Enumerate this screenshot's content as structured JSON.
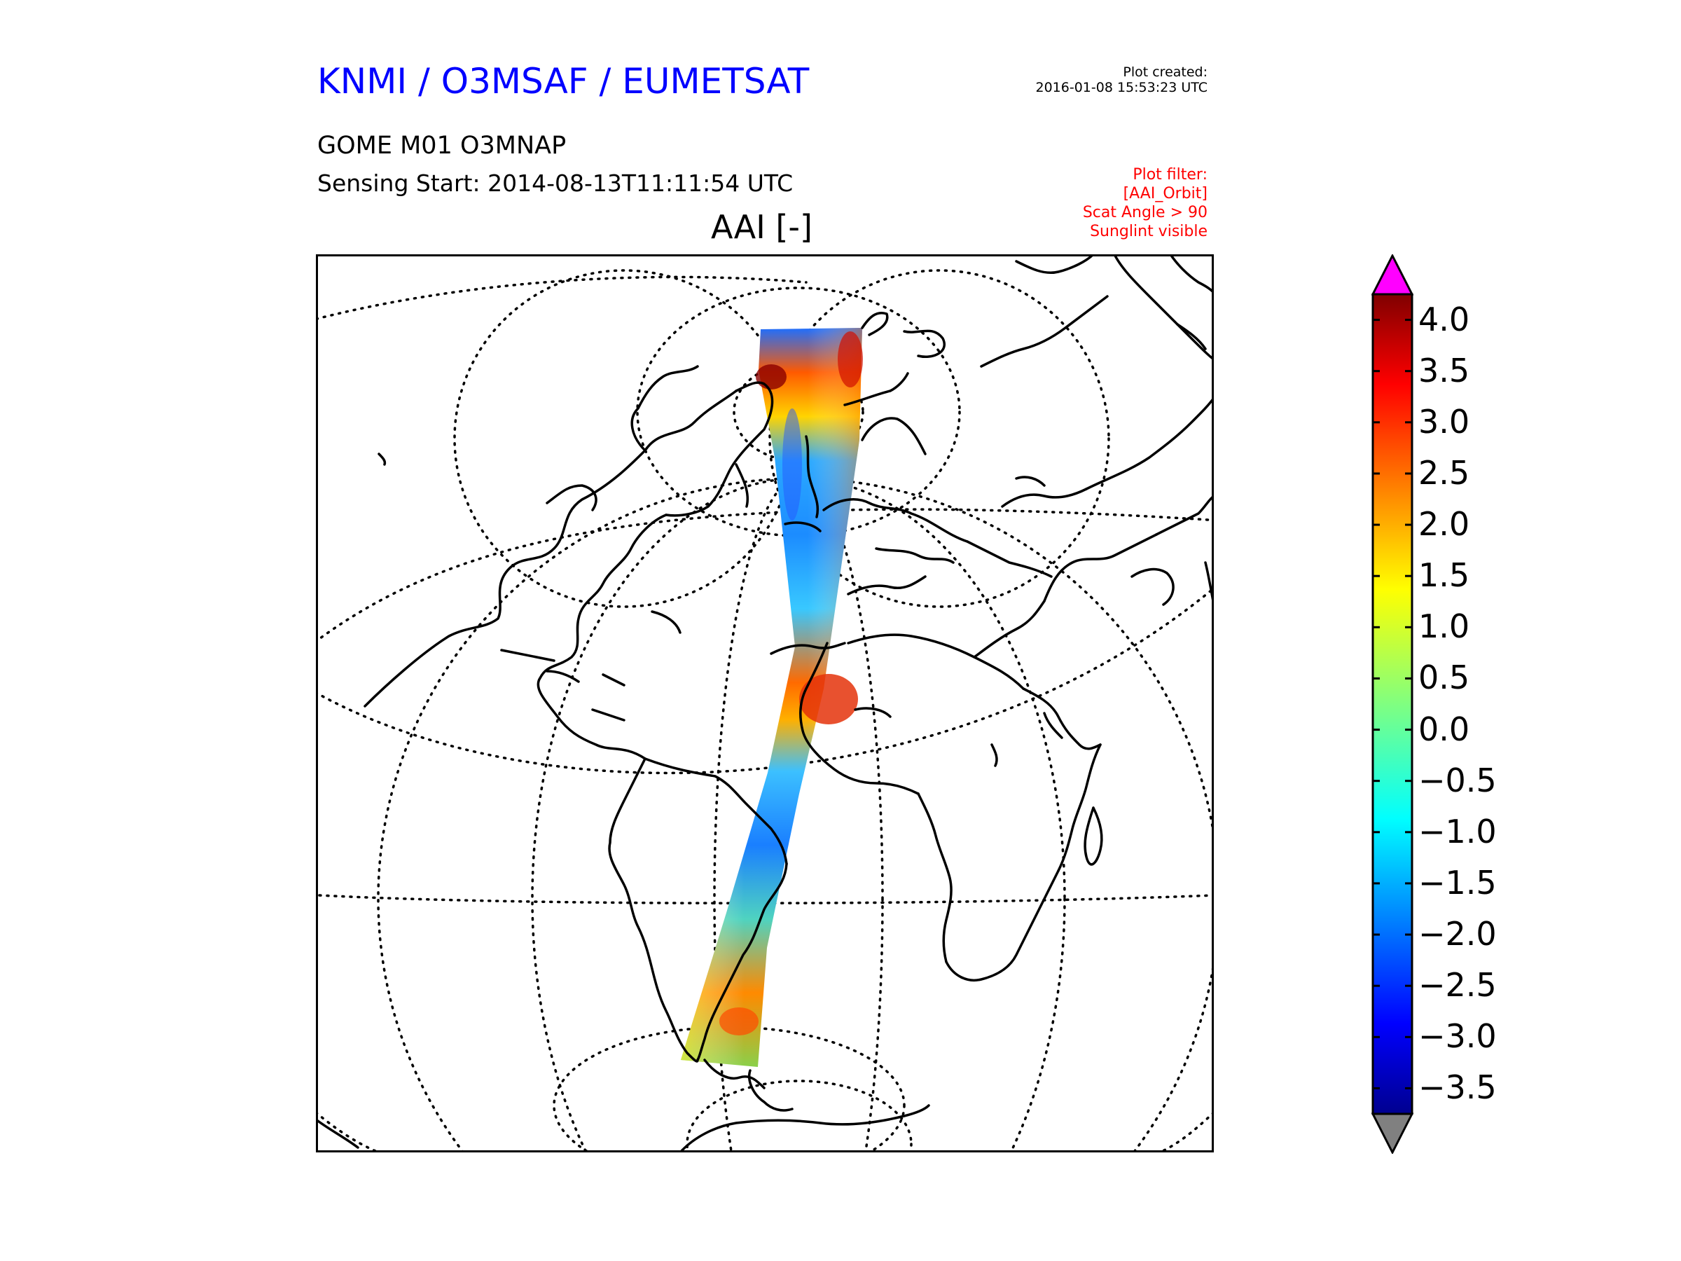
{
  "header": {
    "org_title": "KNMI / O3MSAF / EUMETSAT",
    "plot_created_label": "Plot created:",
    "plot_created_value": "2016-01-08 15:53:23 UTC",
    "product": "GOME M01 O3MNAP",
    "sensing_start": "Sensing Start: 2014-08-13T11:11:54 UTC",
    "filter_lines": [
      "Plot filter:",
      "[AAI_Orbit]",
      "Scat Angle > 90",
      "Sunglint visible"
    ]
  },
  "map": {
    "title": "AAI [-]",
    "projection": "orthographic (Atlantic-centred)",
    "gridlines": "dotted",
    "coastlines": "black"
  },
  "colorbar": {
    "ticks": [
      "4.0",
      "3.5",
      "3.0",
      "2.5",
      "2.0",
      "1.5",
      "1.0",
      "0.5",
      "0.0",
      "−0.5",
      "−1.0",
      "−1.5",
      "−2.0",
      "−2.5",
      "−3.0",
      "−3.5"
    ],
    "min": -3.5,
    "max": 4.0,
    "over_color": "#ff00ff",
    "under_color": "#808080",
    "colormap": "jet"
  },
  "colors": {
    "title_blue": "#0000ff",
    "filter_red": "#ff0000"
  }
}
